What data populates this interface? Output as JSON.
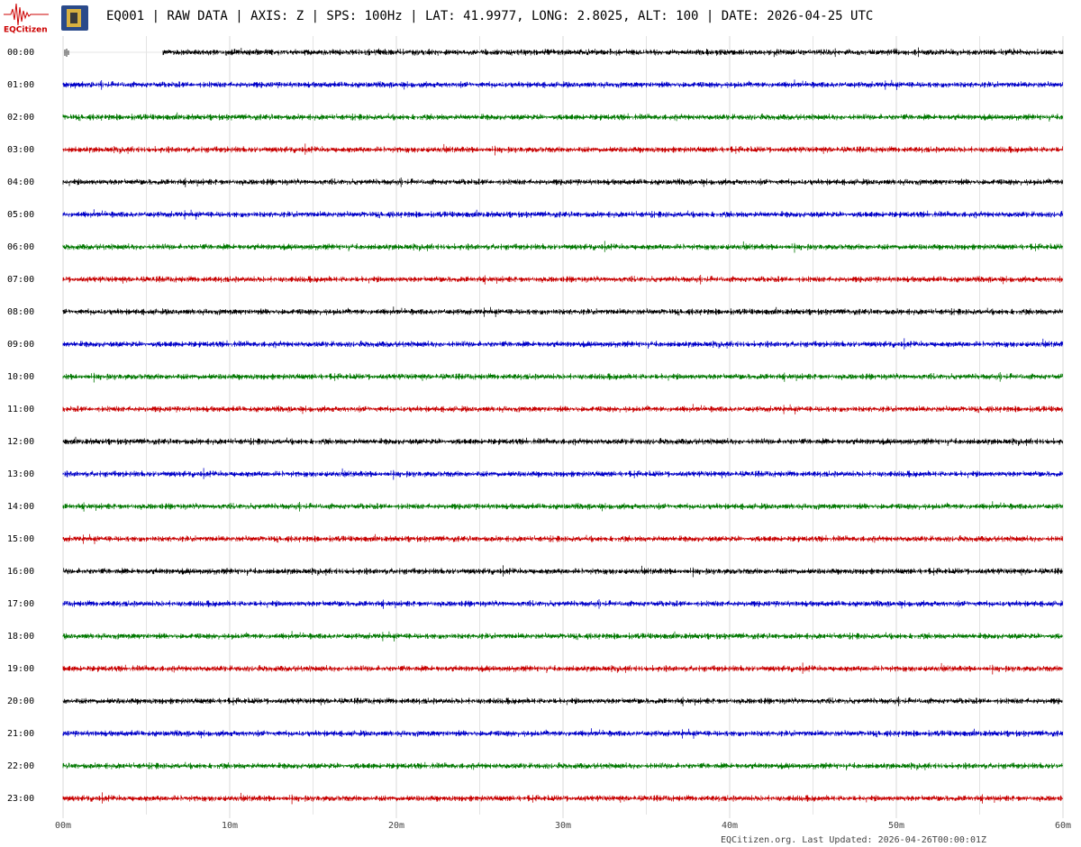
{
  "chart_data": {
    "type": "helicorder",
    "logo_text": "EQCitizen",
    "title": "EQ001 | RAW DATA | AXIS: Z | SPS: 100Hz | LAT: 41.9977, LONG: 2.8025, ALT: 100 | DATE: 2026-04-25 UTC",
    "rows": [
      "00:00",
      "01:00",
      "02:00",
      "03:00",
      "04:00",
      "05:00",
      "06:00",
      "07:00",
      "08:00",
      "09:00",
      "10:00",
      "11:00",
      "12:00",
      "13:00",
      "14:00",
      "15:00",
      "16:00",
      "17:00",
      "18:00",
      "19:00",
      "20:00",
      "21:00",
      "22:00",
      "23:00"
    ],
    "colors": [
      "#000000",
      "#0000c8",
      "#007800",
      "#c80000"
    ],
    "xlim": [
      0,
      60
    ],
    "xticks": [
      {
        "value": 0,
        "label": "00m"
      },
      {
        "value": 10,
        "label": "10m"
      },
      {
        "value": 20,
        "label": "20m"
      },
      {
        "value": 30,
        "label": "30m"
      },
      {
        "value": 40,
        "label": "40m"
      },
      {
        "value": 50,
        "label": "50m"
      },
      {
        "value": 60,
        "label": "60m"
      }
    ],
    "xminor": [
      5,
      15,
      25,
      35,
      45,
      55
    ],
    "trace_start": 6,
    "footer": "EQCitizen.org. Last Updated: 2026-04-26T00:00:01Z"
  }
}
